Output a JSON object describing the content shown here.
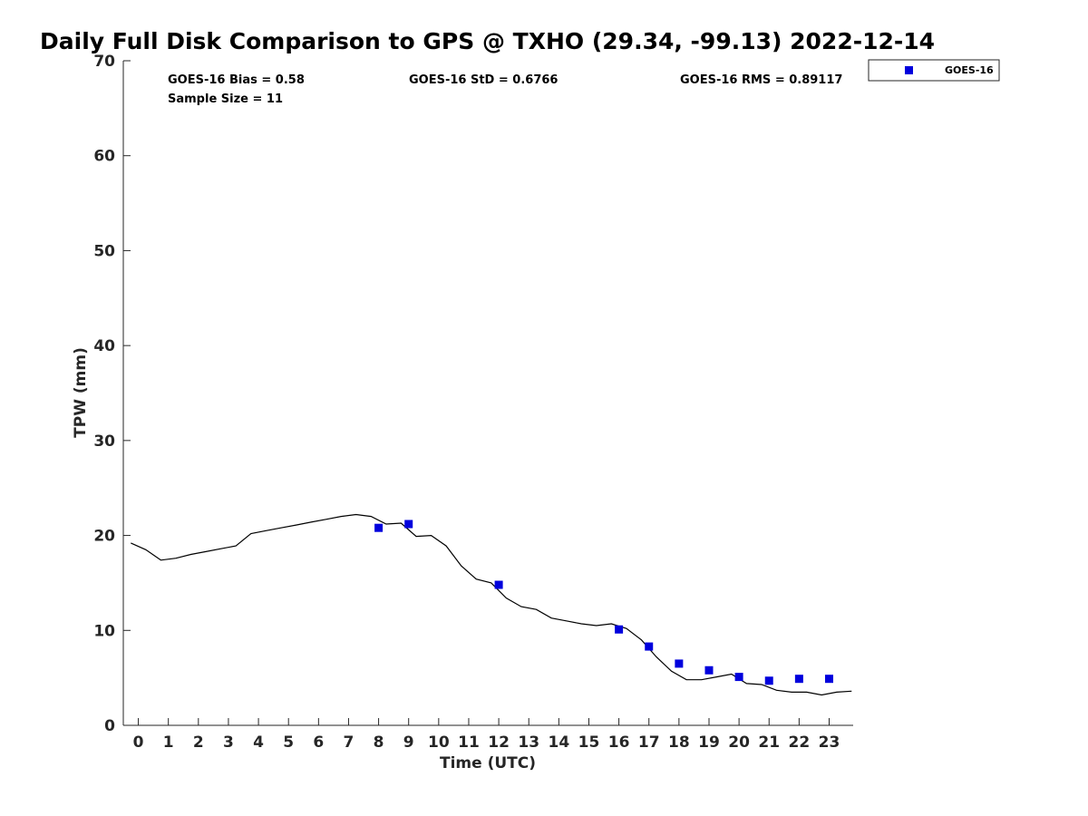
{
  "chart_data": {
    "type": "scatter",
    "title": "Daily Full Disk Comparison to GPS @ TXHO (29.34, -99.13) 2022-12-14",
    "xlabel": "Time (UTC)",
    "ylabel": "TPW (mm)",
    "xlim": [
      -0.5,
      23.8
    ],
    "ylim": [
      0,
      70
    ],
    "x_ticks": [
      0,
      1,
      2,
      3,
      4,
      5,
      6,
      7,
      8,
      9,
      10,
      11,
      12,
      13,
      14,
      15,
      16,
      17,
      18,
      19,
      20,
      21,
      22,
      23
    ],
    "y_ticks": [
      0,
      10,
      20,
      30,
      40,
      50,
      60,
      70
    ],
    "grid": false,
    "legend_position": "top-right",
    "stats": {
      "bias": "GOES-16 Bias = 0.58",
      "std": "GOES-16 StD = 0.6766",
      "rms": "GOES-16 RMS = 0.89117",
      "sample_size": "Sample Size = 11"
    },
    "series": [
      {
        "name": "GOES-16",
        "kind": "scatter",
        "marker": "square",
        "color": "#0000dd",
        "x": [
          8,
          9,
          12,
          16,
          17,
          18,
          19,
          20,
          21,
          22,
          23
        ],
        "y": [
          20.8,
          21.2,
          14.8,
          10.1,
          8.3,
          6.5,
          5.8,
          5.1,
          4.7,
          4.9,
          4.9
        ]
      },
      {
        "kind": "line",
        "color": "#000000",
        "x": [
          -0.25,
          0.25,
          0.75,
          1.25,
          1.75,
          2.25,
          2.75,
          3.25,
          3.75,
          4.25,
          4.75,
          5.25,
          5.75,
          6.25,
          6.75,
          7.25,
          7.75,
          8.25,
          8.75,
          9.25,
          9.75,
          10.25,
          10.75,
          11.25,
          11.75,
          12.25,
          12.75,
          13.25,
          13.75,
          14.25,
          14.75,
          15.25,
          15.75,
          16.25,
          16.75,
          17.25,
          17.75,
          18.25,
          18.75,
          19.25,
          19.75,
          20.25,
          20.75,
          21.25,
          21.75,
          22.25,
          22.75,
          23.25,
          23.75
        ],
        "y": [
          19.2,
          18.5,
          17.4,
          17.6,
          18.0,
          18.3,
          18.6,
          18.9,
          20.2,
          20.5,
          20.8,
          21.1,
          21.4,
          21.7,
          22.0,
          22.2,
          22.0,
          21.2,
          21.3,
          19.9,
          20.0,
          18.9,
          16.8,
          15.4,
          15.0,
          13.4,
          12.5,
          12.2,
          11.3,
          11.0,
          10.7,
          10.5,
          10.7,
          10.2,
          9.0,
          7.2,
          5.7,
          4.8,
          4.8,
          5.1,
          5.4,
          4.4,
          4.3,
          3.7,
          3.5,
          3.5,
          3.2,
          3.5,
          3.6
        ]
      }
    ]
  }
}
